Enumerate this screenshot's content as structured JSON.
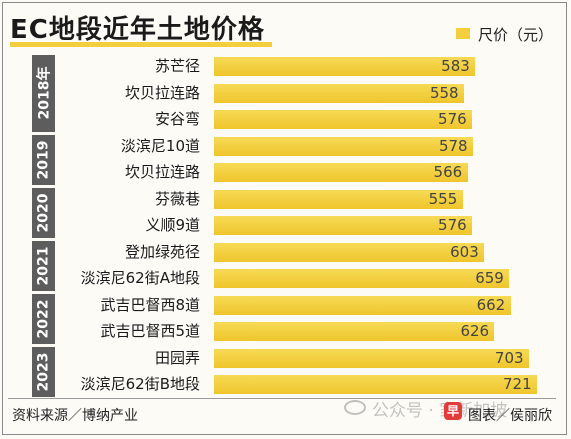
{
  "title": "EC地段近年土地价格",
  "legend": "尺价（元）",
  "colors": {
    "bar": "#f3cf3d",
    "year_box": "#5d5d5d"
  },
  "chart_data": {
    "type": "bar",
    "orientation": "horizontal",
    "title": "EC地段近年土地价格",
    "legend": [
      "尺价（元）"
    ],
    "xlim": [
      0,
      750
    ],
    "groups": [
      {
        "year": "2018年",
        "items": [
          {
            "label": "苏芒径",
            "value": 583
          },
          {
            "label": "坎贝拉连路",
            "value": 558
          },
          {
            "label": "安谷弯",
            "value": 576
          }
        ]
      },
      {
        "year": "2019",
        "items": [
          {
            "label": "淡滨尼10道",
            "value": 578
          },
          {
            "label": "坎贝拉连路",
            "value": 566
          }
        ]
      },
      {
        "year": "2020",
        "items": [
          {
            "label": "芬薇巷",
            "value": 555
          },
          {
            "label": "义顺9道",
            "value": 576
          }
        ]
      },
      {
        "year": "2021",
        "items": [
          {
            "label": "登加绿苑径",
            "value": 603
          },
          {
            "label": "淡滨尼62街A地段",
            "value": 659
          }
        ]
      },
      {
        "year": "2022",
        "items": [
          {
            "label": "武吉巴督西8道",
            "value": 662
          },
          {
            "label": "武吉巴督西5道",
            "value": 626
          }
        ]
      },
      {
        "year": "2023",
        "items": [
          {
            "label": "田园弄",
            "value": 703
          },
          {
            "label": "淡滨尼62街B地段",
            "value": 721
          }
        ]
      }
    ]
  },
  "footer": {
    "source": "资料来源／博纳产业",
    "credit": "图表／侯丽欣"
  },
  "watermark": {
    "text": "公众号 · 家新加坡",
    "logo": "早"
  }
}
